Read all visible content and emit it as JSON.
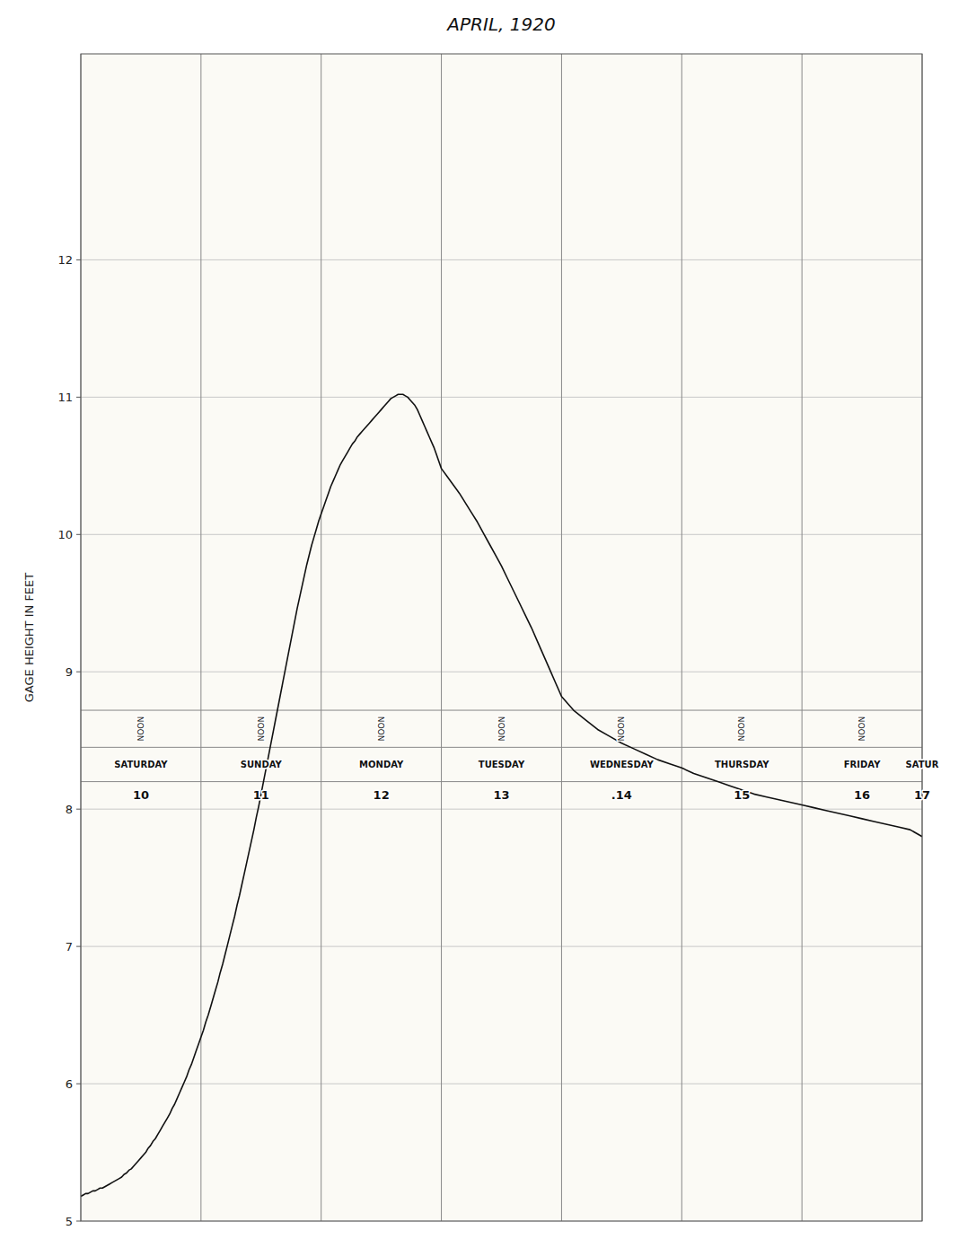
{
  "chart_data": {
    "type": "line",
    "title": "APRIL, 1920",
    "y_label": "GAGE  HEIGHT  IN  FEET",
    "color": "#111111",
    "grid": true,
    "tick_labels": "y",
    "xlim": [
      0.0,
      7.0
    ],
    "xticks": [
      0,
      1,
      2,
      3,
      4,
      5,
      6,
      7
    ],
    "ylim": [
      5.0,
      13.5
    ],
    "yticks": [
      5,
      6,
      7,
      8,
      9,
      10,
      11,
      12
    ],
    "annotations": [
      {
        "x": 0.5,
        "text": [
          "NOON",
          "SATURDAY",
          "10"
        ]
      },
      {
        "x": 1.5,
        "text": [
          "NOON",
          "SUNDAY",
          "11"
        ]
      },
      {
        "x": 2.5,
        "text": [
          "NOON",
          "MONDAY",
          "12"
        ]
      },
      {
        "x": 3.5,
        "text": [
          "NOON",
          "TUESDAY",
          "13"
        ]
      },
      {
        "x": 4.5,
        "text": [
          "NOON",
          "WEDNESDAY",
          ".14"
        ]
      },
      {
        "x": 5.5,
        "text": [
          "NOON",
          "THURSDAY",
          "15"
        ]
      },
      {
        "x": 6.5,
        "text": [
          "NOON",
          "FRIDAY",
          "16"
        ]
      },
      {
        "x": 7.0,
        "text": [
          "SATUR",
          "17"
        ]
      }
    ],
    "x": [
      0.0,
      0.02,
      0.04,
      0.06,
      0.08,
      0.1,
      0.12,
      0.14,
      0.16,
      0.18,
      0.2,
      0.22,
      0.24,
      0.26,
      0.28,
      0.3,
      0.32,
      0.34,
      0.36,
      0.38,
      0.4,
      0.42,
      0.44,
      0.46,
      0.48,
      0.5,
      0.52,
      0.54,
      0.56,
      0.58,
      0.6,
      0.62,
      0.64,
      0.66,
      0.68,
      0.7,
      0.72,
      0.74,
      0.76,
      0.78,
      0.8,
      0.82,
      0.84,
      0.86,
      0.88,
      0.9,
      0.92,
      0.94,
      0.96,
      0.98,
      1.0,
      1.02,
      1.04,
      1.06,
      1.08,
      1.1,
      1.12,
      1.14,
      1.16,
      1.18,
      1.2,
      1.22,
      1.24,
      1.26,
      1.28,
      1.3,
      1.32,
      1.34,
      1.36,
      1.38,
      1.4,
      1.42,
      1.44,
      1.46,
      1.48,
      1.5,
      1.52,
      1.54,
      1.56,
      1.58,
      1.6,
      1.62,
      1.64,
      1.66,
      1.68,
      1.7,
      1.72,
      1.74,
      1.76,
      1.78,
      1.8,
      1.82,
      1.84,
      1.86,
      1.88,
      1.9,
      1.92,
      1.94,
      1.96,
      1.98,
      2.0,
      2.02,
      2.04,
      2.06,
      2.08,
      2.1,
      2.12,
      2.14,
      2.16,
      2.18,
      2.2,
      2.22,
      2.24,
      2.26,
      2.28,
      2.3,
      2.32,
      2.34,
      2.36,
      2.38,
      2.4,
      2.42,
      2.44,
      2.46,
      2.48,
      2.5,
      2.52,
      2.54,
      2.56,
      2.58,
      2.6,
      2.62,
      2.64,
      2.66,
      2.68,
      2.7,
      2.72,
      2.74,
      2.76,
      2.78,
      2.8,
      2.82,
      2.84,
      2.86,
      2.88,
      2.9,
      2.92,
      2.94,
      2.96,
      2.98,
      3.0,
      3.05,
      3.1,
      3.15,
      3.2,
      3.25,
      3.3,
      3.35,
      3.4,
      3.45,
      3.5,
      3.55,
      3.6,
      3.65,
      3.7,
      3.75,
      3.8,
      3.85,
      3.9,
      3.95,
      4.0,
      4.1,
      4.2,
      4.3,
      4.4,
      4.5,
      4.6,
      4.7,
      4.8,
      4.9,
      5.0,
      5.1,
      5.2,
      5.3,
      5.4,
      5.5,
      5.6,
      5.7,
      5.8,
      5.9,
      6.0,
      6.1,
      6.2,
      6.3,
      6.4,
      6.5,
      6.6,
      6.7,
      6.8,
      6.9,
      7.0
    ],
    "values": [
      5.18,
      5.19,
      5.2,
      5.2,
      5.21,
      5.22,
      5.22,
      5.23,
      5.24,
      5.24,
      5.25,
      5.26,
      5.27,
      5.28,
      5.29,
      5.3,
      5.31,
      5.32,
      5.34,
      5.35,
      5.37,
      5.38,
      5.4,
      5.42,
      5.44,
      5.46,
      5.48,
      5.5,
      5.53,
      5.55,
      5.58,
      5.6,
      5.63,
      5.66,
      5.69,
      5.72,
      5.75,
      5.78,
      5.82,
      5.85,
      5.89,
      5.93,
      5.97,
      6.01,
      6.05,
      6.1,
      6.14,
      6.19,
      6.24,
      6.29,
      6.34,
      6.39,
      6.45,
      6.5,
      6.56,
      6.62,
      6.68,
      6.74,
      6.81,
      6.87,
      6.94,
      7.01,
      7.08,
      7.15,
      7.22,
      7.3,
      7.37,
      7.45,
      7.53,
      7.61,
      7.69,
      7.77,
      7.85,
      7.94,
      8.02,
      8.11,
      8.2,
      8.29,
      8.38,
      8.47,
      8.56,
      8.65,
      8.74,
      8.83,
      8.92,
      9.01,
      9.1,
      9.19,
      9.28,
      9.37,
      9.46,
      9.54,
      9.62,
      9.7,
      9.78,
      9.85,
      9.92,
      9.98,
      10.04,
      10.1,
      10.15,
      10.2,
      10.25,
      10.3,
      10.35,
      10.39,
      10.43,
      10.47,
      10.51,
      10.54,
      10.57,
      10.6,
      10.63,
      10.66,
      10.68,
      10.71,
      10.73,
      10.75,
      10.77,
      10.79,
      10.81,
      10.83,
      10.85,
      10.87,
      10.89,
      10.91,
      10.93,
      10.95,
      10.97,
      10.99,
      11.0,
      11.01,
      11.02,
      11.02,
      11.02,
      11.01,
      11.0,
      10.98,
      10.96,
      10.94,
      10.91,
      10.87,
      10.83,
      10.79,
      10.75,
      10.71,
      10.67,
      10.63,
      10.58,
      10.53,
      10.48,
      10.42,
      10.36,
      10.3,
      10.23,
      10.16,
      10.09,
      10.01,
      9.93,
      9.85,
      9.77,
      9.68,
      9.59,
      9.5,
      9.41,
      9.32,
      9.22,
      9.12,
      9.02,
      8.92,
      8.82,
      8.72,
      8.65,
      8.58,
      8.53,
      8.48,
      8.44,
      8.4,
      8.36,
      8.33,
      8.3,
      8.26,
      8.23,
      8.2,
      8.17,
      8.14,
      8.11,
      8.09,
      8.07,
      8.05,
      8.03,
      8.01,
      7.99,
      7.97,
      7.95,
      7.93,
      7.91,
      7.89,
      7.87,
      7.85,
      7.8
    ]
  }
}
